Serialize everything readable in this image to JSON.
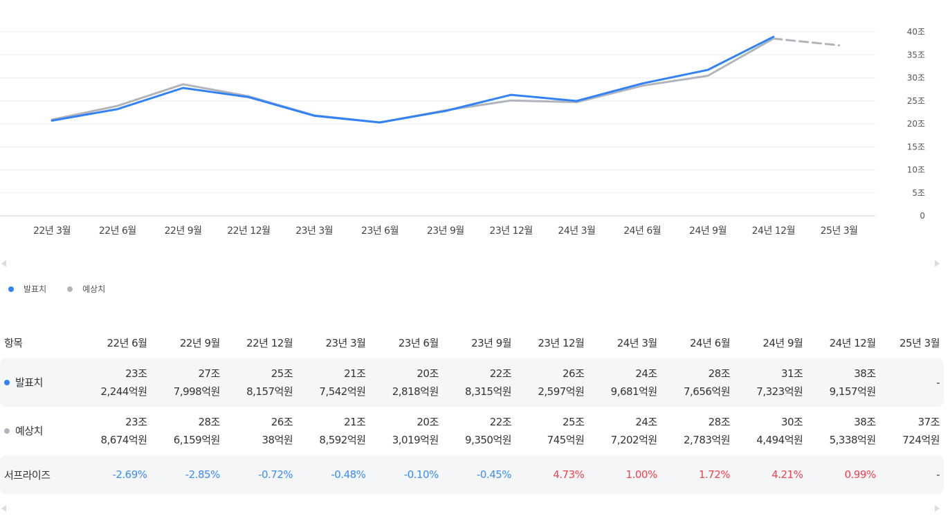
{
  "chart_data": {
    "type": "line",
    "x": [
      "22년 3월",
      "22년 6월",
      "22년 9월",
      "22년 12월",
      "23년 3월",
      "23년 6월",
      "23년 9월",
      "23년 12월",
      "24년 3월",
      "24년 6월",
      "24년 9월",
      "24년 12월",
      "25년 3월"
    ],
    "series": [
      {
        "name": "발표치",
        "color": "#3182f6",
        "values": [
          20.7,
          23.2,
          27.8,
          25.8,
          21.75,
          20.3,
          22.8,
          26.3,
          24.97,
          28.77,
          31.73,
          38.92,
          null
        ]
      },
      {
        "name": "예상치",
        "color": "#b0b4bb",
        "values": [
          20.9,
          23.9,
          28.6,
          26.0,
          21.85,
          20.3,
          22.93,
          25.07,
          24.72,
          28.28,
          30.45,
          38.53,
          37.07
        ],
        "forecast_dashed_last": true
      }
    ],
    "yticks": [
      "40조",
      "35조",
      "30조",
      "25조",
      "20조",
      "15조",
      "10조",
      "5조",
      "0"
    ],
    "ylim": [
      0,
      40
    ],
    "grid": true,
    "legend_position": "bottom-left"
  },
  "legend": [
    {
      "label": "발표치",
      "color": "#3182f6"
    },
    {
      "label": "예상치",
      "color": "#b0b4bb"
    }
  ],
  "table": {
    "header_label": "항목",
    "columns": [
      "22년 6월",
      "22년 9월",
      "22년 12월",
      "23년 3월",
      "23년 6월",
      "23년 9월",
      "23년 12월",
      "24년 3월",
      "24년 6월",
      "24년 9월",
      "24년 12월",
      "25년 3월"
    ],
    "rows": {
      "actual": {
        "label": "발표치",
        "color": "#3182f6",
        "values": [
          [
            "23조",
            "2,244억원"
          ],
          [
            "27조",
            "7,998억원"
          ],
          [
            "25조",
            "8,157억원"
          ],
          [
            "21조",
            "7,542억원"
          ],
          [
            "20조",
            "2,818억원"
          ],
          [
            "22조",
            "8,315억원"
          ],
          [
            "26조",
            "2,597억원"
          ],
          [
            "24조",
            "9,681억원"
          ],
          [
            "28조",
            "7,656억원"
          ],
          [
            "31조",
            "7,323억원"
          ],
          [
            "38조",
            "9,157억원"
          ],
          [
            "-",
            ""
          ]
        ]
      },
      "estimate": {
        "label": "예상치",
        "color": "#b0b4bb",
        "values": [
          [
            "23조",
            "8,674억원"
          ],
          [
            "28조",
            "6,159억원"
          ],
          [
            "26조",
            "38억원"
          ],
          [
            "21조",
            "8,592억원"
          ],
          [
            "20조",
            "3,019억원"
          ],
          [
            "22조",
            "9,350억원"
          ],
          [
            "25조",
            "745억원"
          ],
          [
            "24조",
            "7,202억원"
          ],
          [
            "28조",
            "2,783억원"
          ],
          [
            "30조",
            "4,494억원"
          ],
          [
            "38조",
            "5,338억원"
          ],
          [
            "37조",
            "724억원"
          ]
        ]
      },
      "surprise": {
        "label": "서프라이즈",
        "values": [
          "-2.69%",
          "-2.85%",
          "-0.72%",
          "-0.48%",
          "-0.10%",
          "-0.45%",
          "4.73%",
          "1.00%",
          "1.72%",
          "4.21%",
          "0.99%",
          "-"
        ]
      }
    }
  }
}
